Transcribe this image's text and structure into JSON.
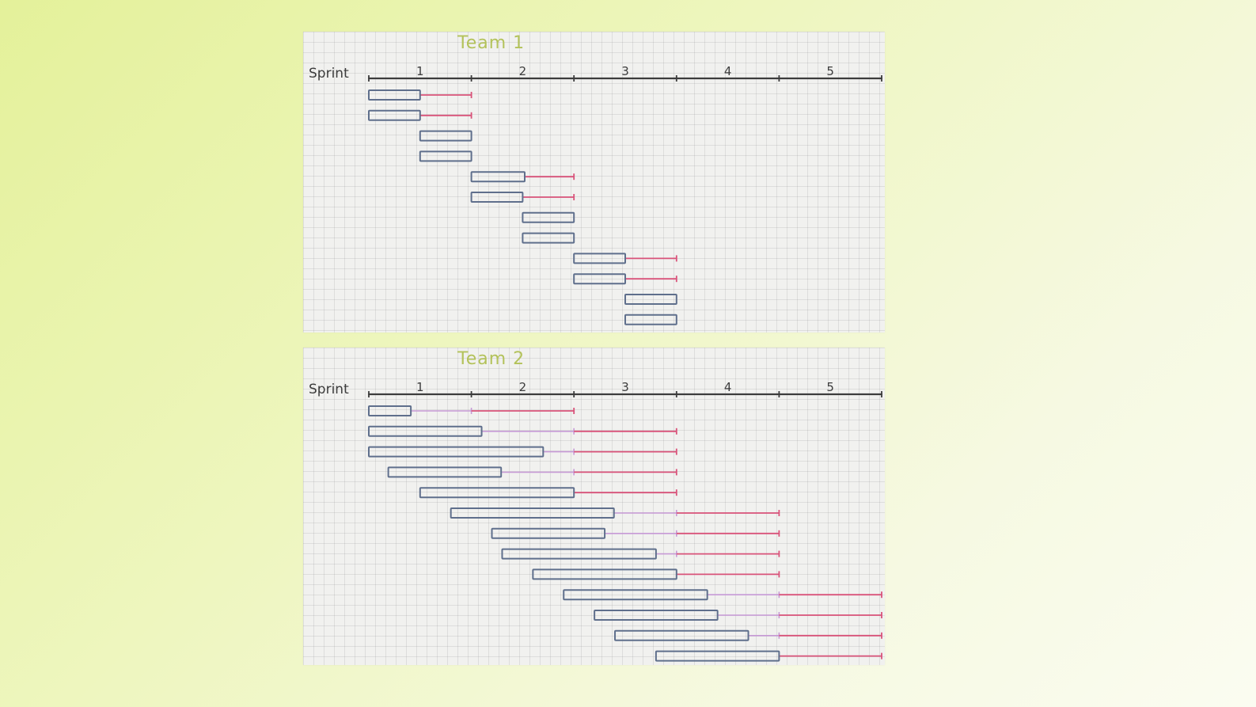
{
  "colors": {
    "page_gradient": [
      "#e4f19a",
      "#fbfcf1"
    ],
    "paper": "#f1f1ef",
    "grid": "#c8c8c8",
    "title_green": "#b3c25a",
    "axis": "#3c3c3c",
    "task_box": "#5f6f8c",
    "buffer_pink": "#d9537a",
    "buffer_violet": "#c79ad6"
  },
  "teams": [
    {
      "title": "Team 1",
      "axis_label": "Sprint",
      "sprint_ticks": [
        "1",
        "2",
        "3",
        "4",
        "5"
      ],
      "sprint_range": [
        0,
        5
      ],
      "tasks": [
        {
          "start": 0.0,
          "end": 0.5,
          "violet_end": null,
          "pink_end": 1.0
        },
        {
          "start": 0.0,
          "end": 0.5,
          "violet_end": null,
          "pink_end": 1.0
        },
        {
          "start": 0.5,
          "end": 1.0,
          "violet_end": null,
          "pink_end": null
        },
        {
          "start": 0.5,
          "end": 1.0,
          "violet_end": null,
          "pink_end": null
        },
        {
          "start": 1.0,
          "end": 1.52,
          "violet_end": null,
          "pink_end": 2.0
        },
        {
          "start": 1.0,
          "end": 1.5,
          "violet_end": null,
          "pink_end": 2.0
        },
        {
          "start": 1.5,
          "end": 2.0,
          "violet_end": null,
          "pink_end": null
        },
        {
          "start": 1.5,
          "end": 2.0,
          "violet_end": null,
          "pink_end": null
        },
        {
          "start": 2.0,
          "end": 2.5,
          "violet_end": null,
          "pink_end": 3.0
        },
        {
          "start": 2.0,
          "end": 2.5,
          "violet_end": null,
          "pink_end": 3.0
        },
        {
          "start": 2.5,
          "end": 3.0,
          "violet_end": null,
          "pink_end": null
        },
        {
          "start": 2.5,
          "end": 3.0,
          "violet_end": null,
          "pink_end": null
        }
      ]
    },
    {
      "title": "Team 2",
      "axis_label": "Sprint",
      "sprint_ticks": [
        "1",
        "2",
        "3",
        "4",
        "5"
      ],
      "sprint_range": [
        0,
        5
      ],
      "tasks": [
        {
          "start": 0.0,
          "end": 0.41,
          "violet_end": 1.0,
          "pink_end": 2.0
        },
        {
          "start": 0.0,
          "end": 1.1,
          "violet_end": 2.0,
          "pink_end": 3.0
        },
        {
          "start": 0.0,
          "end": 1.7,
          "violet_end": 2.0,
          "pink_end": 3.0
        },
        {
          "start": 0.19,
          "end": 1.29,
          "violet_end": 2.0,
          "pink_end": 3.0
        },
        {
          "start": 0.5,
          "end": 2.0,
          "violet_end": null,
          "pink_end": 3.0
        },
        {
          "start": 0.8,
          "end": 2.39,
          "violet_end": 3.0,
          "pink_end": 4.0
        },
        {
          "start": 1.2,
          "end": 2.3,
          "violet_end": 3.0,
          "pink_end": 4.0
        },
        {
          "start": 1.3,
          "end": 2.8,
          "violet_end": 3.0,
          "pink_end": 4.0
        },
        {
          "start": 1.6,
          "end": 3.0,
          "violet_end": null,
          "pink_end": 4.0
        },
        {
          "start": 1.9,
          "end": 3.3,
          "violet_end": 4.0,
          "pink_end": 5.0
        },
        {
          "start": 2.2,
          "end": 3.4,
          "violet_end": 4.0,
          "pink_end": 5.0
        },
        {
          "start": 2.4,
          "end": 3.7,
          "violet_end": 4.0,
          "pink_end": 5.0
        },
        {
          "start": 2.8,
          "end": 4.0,
          "violet_end": null,
          "pink_end": 5.0
        }
      ]
    }
  ]
}
